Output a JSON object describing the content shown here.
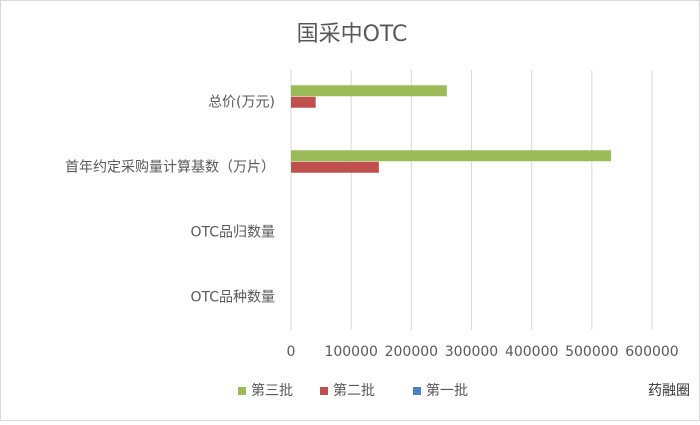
{
  "chart_data": {
    "type": "hbar",
    "title": "国采中OTC",
    "categories": [
      "总价(万元)",
      "首年约定采购量计算基数（万片）",
      "OTC品归数量",
      "OTC品种数量"
    ],
    "series": [
      {
        "name": "第三批",
        "color": "#9bbb59",
        "values": [
          259000,
          532000,
          0,
          0
        ]
      },
      {
        "name": "第二批",
        "color": "#c0504d",
        "values": [
          41000,
          146000,
          0,
          0
        ]
      },
      {
        "name": "第一批",
        "color": "#4f81bd",
        "values": [
          0,
          0,
          0,
          0
        ]
      }
    ],
    "xlim": [
      0,
      600000
    ],
    "xticks": [
      0,
      100000,
      200000,
      300000,
      400000,
      500000,
      600000
    ],
    "grid": true,
    "legend": "bottom",
    "watermark": "药融圈"
  }
}
